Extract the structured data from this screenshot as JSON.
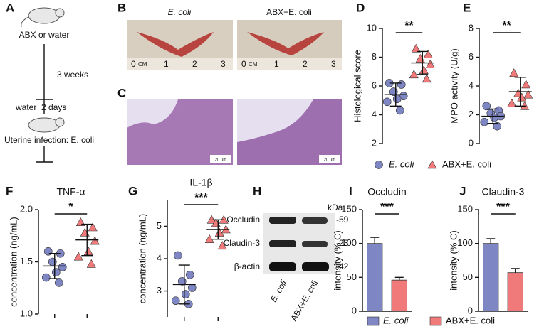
{
  "panel_labels": [
    "A",
    "B",
    "C",
    "D",
    "E",
    "F",
    "G",
    "H",
    "I",
    "J"
  ],
  "diagram": {
    "step1": "ABX or water",
    "duration": "3 weeks",
    "step2": "water  2 days",
    "step3": "Uterine infection: E. coli"
  },
  "photos": {
    "titles": [
      "E. coli",
      "ABX+E. coli"
    ],
    "ruler": [
      "0",
      "CM",
      "1",
      "2",
      "3"
    ],
    "scale_bar": "20 μm"
  },
  "blot": {
    "unit": "kDa",
    "bands": [
      {
        "label": "Occludin",
        "size": "-59"
      },
      {
        "label": "Claudin-3",
        "size": "-23"
      },
      {
        "label": "β-actin",
        "size": "-42"
      }
    ],
    "lanes": [
      "E. coli",
      "ABX+E. coli"
    ]
  },
  "chart_data": [
    {
      "type": "strip",
      "ylabel": "Histological score",
      "ylim": [
        2,
        10
      ],
      "yticks": [
        2,
        4,
        6,
        8,
        10
      ],
      "significance": "**",
      "legend": "bottom",
      "series": [
        {
          "name": "E. coli",
          "color": "#7f86c4",
          "marker": "circle",
          "values": [
            6.2,
            6.1,
            5.6,
            5.3,
            5.1,
            4.9,
            4.3
          ],
          "mean": 5.4,
          "sd": 0.8
        },
        {
          "name": "ABX+E. coli",
          "color": "#f07a7a",
          "marker": "triangle",
          "values": [
            8.6,
            8.2,
            7.9,
            7.5,
            7.1,
            6.8,
            6.5
          ],
          "mean": 7.6,
          "sd": 0.8
        }
      ]
    },
    {
      "type": "strip",
      "ylabel": "MPO activity (U/g)",
      "ylim": [
        0,
        8
      ],
      "yticks": [
        0,
        2,
        4,
        6,
        8
      ],
      "significance": "**",
      "series": [
        {
          "color": "#7f86c4",
          "marker": "circle",
          "values": [
            2.6,
            2.3,
            2.1,
            1.9,
            1.8,
            1.5,
            1.2
          ],
          "mean": 1.9,
          "sd": 0.5
        },
        {
          "color": "#f07a7a",
          "marker": "triangle",
          "values": [
            4.9,
            4.1,
            3.5,
            3.4,
            3.2,
            2.8,
            2.6
          ],
          "mean": 3.6,
          "sd": 1.0
        }
      ]
    },
    {
      "type": "strip",
      "title": "TNF-α",
      "ylabel": "concentration (ng/mL)",
      "ylim": [
        1.0,
        2.0
      ],
      "yticks": [
        {
          "value": 1.0,
          "label": "1.0"
        },
        {
          "value": 1.5,
          "label": "1.5"
        },
        {
          "value": 2.0,
          "label": "2.0"
        }
      ],
      "significance": "*",
      "categories": [
        null,
        null
      ],
      "series": [
        {
          "color": "#7f86c4",
          "marker": "circle",
          "values": [
            1.6,
            1.58,
            1.5,
            1.45,
            1.4,
            1.35,
            1.3
          ],
          "mean": 1.46,
          "sd": 0.12
        },
        {
          "color": "#f07a7a",
          "marker": "triangle",
          "values": [
            1.88,
            1.83,
            1.78,
            1.7,
            1.6,
            1.55,
            1.48
          ],
          "mean": 1.71,
          "sd": 0.15
        }
      ]
    },
    {
      "type": "strip",
      "title": "IL-1β",
      "ylabel": "concentration (ng/mL)",
      "ylim": [
        2.2,
        5.8
      ],
      "yticks": [
        3,
        4,
        5
      ],
      "significance": "***",
      "categories": [
        null,
        null
      ],
      "series": [
        {
          "color": "#7f86c4",
          "marker": "circle",
          "values": [
            4.1,
            3.5,
            3.3,
            3.1,
            2.9,
            2.7,
            2.6
          ],
          "mean": 3.2,
          "sd": 0.6
        },
        {
          "color": "#f07a7a",
          "marker": "triangle",
          "values": [
            5.2,
            5.2,
            5.1,
            4.9,
            4.8,
            4.6,
            4.4
          ],
          "mean": 4.9,
          "sd": 0.3
        }
      ]
    },
    {
      "type": "bar",
      "title": "Occludin",
      "ylabel": "intensity (% C)",
      "ylim": [
        0,
        150
      ],
      "yticks": [
        0,
        50,
        100,
        150
      ],
      "significance": "***",
      "legend": "bottom",
      "series": [
        {
          "name": "E. coli",
          "color": "#7f86c4",
          "values": [
            100
          ],
          "errors": [
            9
          ]
        },
        {
          "name": "ABX+E. coli",
          "color": "#f07a7a",
          "values": [
            46
          ],
          "errors": [
            4
          ]
        }
      ]
    },
    {
      "type": "bar",
      "title": "Claudin-3",
      "ylabel": "intensity (% C)",
      "ylim": [
        0,
        150
      ],
      "yticks": [
        0,
        50,
        100,
        150
      ],
      "significance": "***",
      "series": [
        {
          "color": "#7f86c4",
          "values": [
            100
          ],
          "errors": [
            7
          ]
        },
        {
          "color": "#f07a7a",
          "values": [
            57
          ],
          "errors": [
            6
          ]
        }
      ]
    }
  ]
}
